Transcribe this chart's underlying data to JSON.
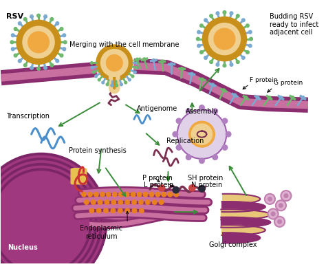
{
  "bg_color": "#ffffff",
  "membrane_color": "#8b2d6e",
  "membrane_inner": "#c970a0",
  "virus_spike_green": "#6db86d",
  "virus_spike_blue": "#7aaad0",
  "virus_ring": "#c8901a",
  "virus_bg": "#f0d090",
  "virus_core": "#f0a840",
  "arrow_color": "#3a8c3a",
  "rna_blue": "#4a8fcc",
  "rna_maroon": "#7a3050",
  "nucleus_dark": "#7a2565",
  "nucleus_mid": "#a03880",
  "nucleus_light": "#c060a0",
  "er_color": "#8b2d6e",
  "er_fill": "#c060a0",
  "golgi_purple": "#8b2d6e",
  "golgi_yellow": "#e8c878",
  "orange_bead": "#e88020",
  "assembly_fill": "#e0d0e8",
  "assembly_border": "#a060b0",
  "assembly_dot": "#b080c0",
  "vesicle_fill": "#e0b0d0",
  "vesicle_border": "#c080b0",
  "red_protein": "#cc4444",
  "dark_protein": "#2a2a3a",
  "pore_yellow": "#e8c050",
  "red_rna": "#cc3333",
  "label_fs": 7.0,
  "labels": {
    "rsv": "RSV",
    "merging": "Merging with the cell membrane",
    "budding": "Budding RSV\nready to infect\nadjacent cell",
    "transcription": "Transcription",
    "antigenome": "Antigenome",
    "replication": "Replication",
    "protein_synthesis": "Protein synthesis",
    "assembly": "Assembly",
    "f_protein": "F protein",
    "g_protein": "G protein",
    "p_protein": "P protein",
    "l_protein": "L protein",
    "sh_protein": "SH protein",
    "n_protein": "N protein",
    "endoplasmic": "Endoplasmic\nreticulum",
    "golgi": "Golgi complex",
    "nucleus": "Nucleus"
  }
}
